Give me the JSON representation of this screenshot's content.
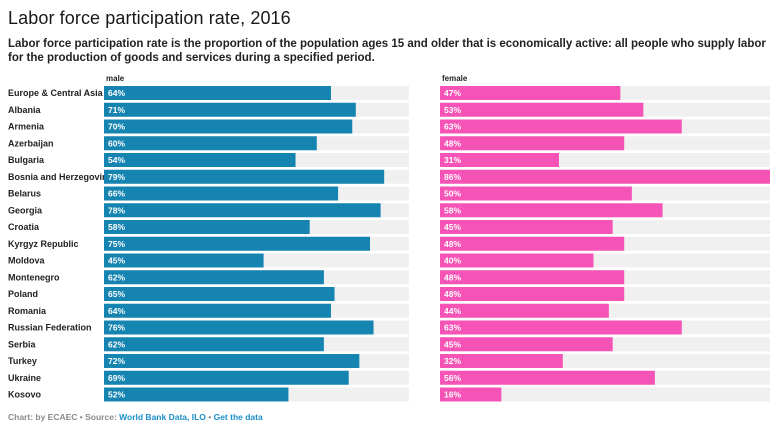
{
  "header": {
    "title": "Labor force participation rate, 2016",
    "subtitle": "Labor force participation rate is the proportion of the population ages 15 and older that is economically active: all people who supply labor for the production of goods and services during a specified period."
  },
  "footer": {
    "prefix": "Chart: by ECAEC • Source: ",
    "source_link": "World Bank Data, ILO",
    "separator": " • ",
    "data_link": "Get the data"
  },
  "colors": {
    "male": "#1584b1",
    "female": "#f553b5",
    "track": "#f0f0f0"
  },
  "chart_data": {
    "type": "bar",
    "orientation": "horizontal",
    "title": "Labor force participation rate, 2016",
    "value_suffix": "%",
    "xlim": [
      0,
      86
    ],
    "categories": [
      "Europe & Central Asia",
      "Albania",
      "Armenia",
      "Azerbaijan",
      "Bulgaria",
      "Bosnia and Herzegovina",
      "Belarus",
      "Georgia",
      "Croatia",
      "Kyrgyz Republic",
      "Moldova",
      "Montenegro",
      "Poland",
      "Romania",
      "Russian Federation",
      "Serbia",
      "Turkey",
      "Ukraine",
      "Kosovo"
    ],
    "series": [
      {
        "name": "male",
        "values": [
          64,
          71,
          70,
          60,
          54,
          79,
          66,
          78,
          58,
          75,
          45,
          62,
          65,
          64,
          76,
          62,
          72,
          69,
          52
        ]
      },
      {
        "name": "female",
        "values": [
          47,
          53,
          63,
          48,
          31,
          86,
          50,
          58,
          45,
          48,
          40,
          48,
          48,
          44,
          63,
          45,
          32,
          56,
          16
        ]
      }
    ]
  }
}
